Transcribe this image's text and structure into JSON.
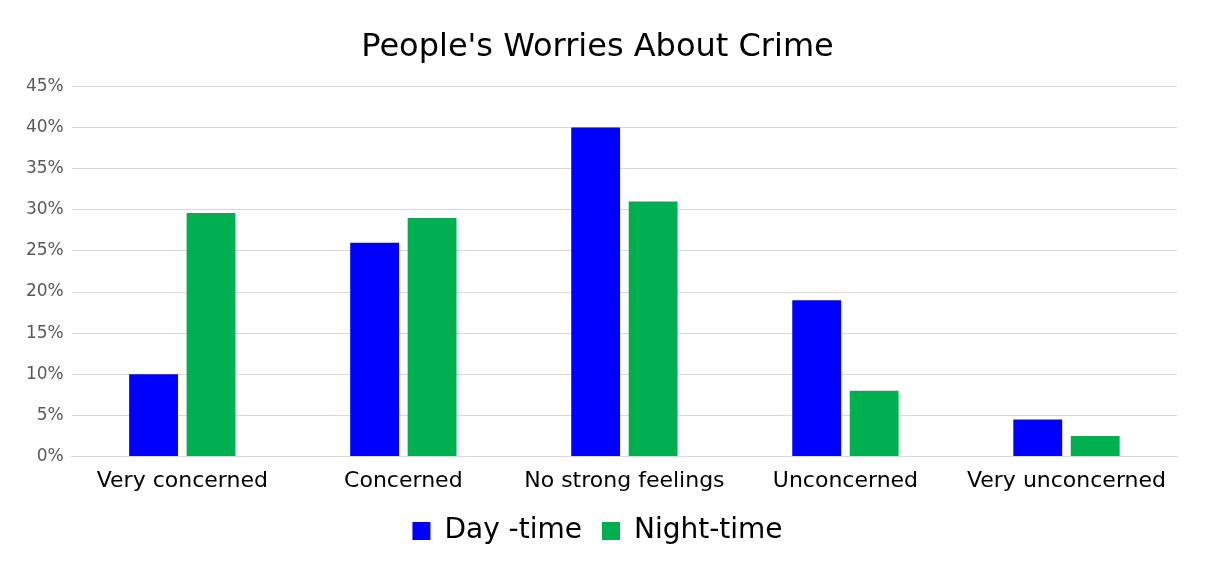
{
  "chart_data": {
    "type": "bar",
    "title": "People's Worries About Crime",
    "categories": [
      "Very concerned",
      "Concerned",
      "No strong feelings",
      "Unconcerned",
      "Very unconcerned"
    ],
    "series": [
      {
        "name": "Day -time",
        "color": "#0000ff",
        "values": [
          10,
          26,
          40,
          19,
          4.5
        ]
      },
      {
        "name": "Night-time",
        "color": "#00b050",
        "values": [
          29.6,
          29,
          31,
          8,
          2.5
        ]
      }
    ],
    "ylim": [
      0,
      45
    ],
    "yticks": [
      {
        "value": 0,
        "label": "0%"
      },
      {
        "value": 5,
        "label": "5%"
      },
      {
        "value": 10,
        "label": "10%"
      },
      {
        "value": 15,
        "label": "15%"
      },
      {
        "value": 20,
        "label": "20%"
      },
      {
        "value": 25,
        "label": "25%"
      },
      {
        "value": 30,
        "label": "30%"
      },
      {
        "value": 35,
        "label": "35%"
      },
      {
        "value": 40,
        "label": "40%"
      },
      {
        "value": 45,
        "label": "45%"
      }
    ],
    "grid": "y",
    "legend": "bottom"
  }
}
